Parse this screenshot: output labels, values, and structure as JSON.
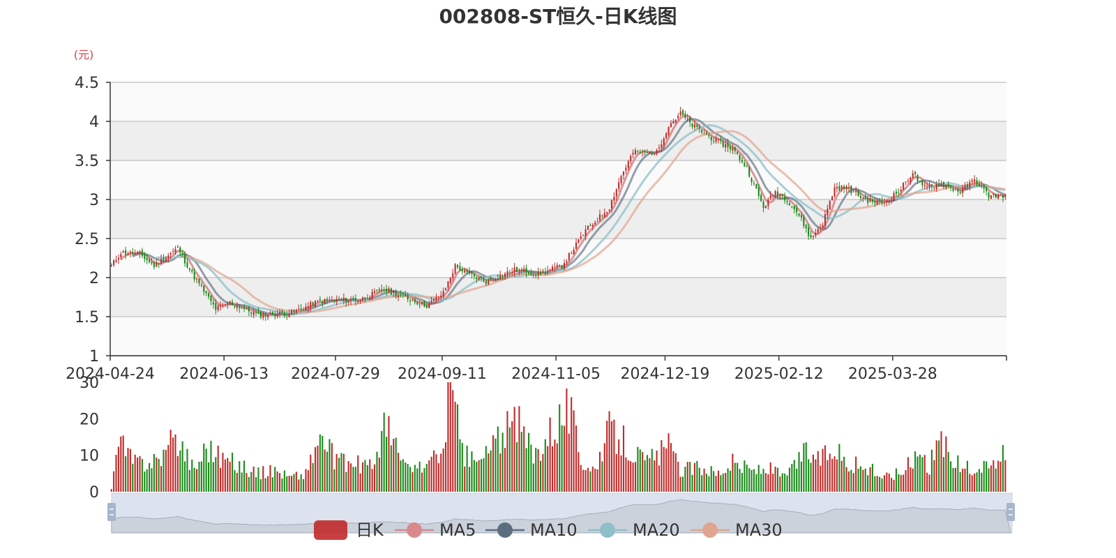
{
  "chart_data": {
    "type": "candlestick",
    "title": "002808-ST恒久-日K线图",
    "price_unit": "(元)",
    "colors": {
      "up": "#c12a2a",
      "down": "#1a8a1a",
      "ma5": "#d9898c",
      "ma10": "#5b6e7f",
      "ma20": "#8fbfc9",
      "ma30": "#e0a590",
      "band": "#eeeeee",
      "zoom_fill": "#dde3ee",
      "zoom_handle": "#a6b6cc",
      "unit": "#e04040"
    },
    "price_axis": {
      "ylim": [
        1,
        4.5
      ],
      "ticks": [
        "1",
        "1.5",
        "2",
        "2.5",
        "3",
        "3.5",
        "4",
        "4.5"
      ]
    },
    "volume_axis": {
      "ylim": [
        0,
        30
      ],
      "ticks": [
        "0",
        "10",
        "20",
        "30"
      ]
    },
    "x_ticks": [
      "2024-04-24",
      "2024-06-13",
      "2024-07-29",
      "2024-09-11",
      "2024-11-05",
      "2024-12-19",
      "2025-02-12",
      "2025-03-28"
    ],
    "legend": [
      {
        "name": "日K",
        "key": "up"
      },
      {
        "name": "MA5",
        "key": "ma5"
      },
      {
        "name": "MA10",
        "key": "ma10"
      },
      {
        "name": "MA20",
        "key": "ma20"
      },
      {
        "name": "MA30",
        "key": "ma30"
      }
    ],
    "close_keypoints": [
      [
        0,
        2.15
      ],
      [
        4,
        2.32
      ],
      [
        12,
        2.3
      ],
      [
        18,
        2.15
      ],
      [
        28,
        2.38
      ],
      [
        34,
        2.05
      ],
      [
        44,
        1.6
      ],
      [
        50,
        1.68
      ],
      [
        62,
        1.52
      ],
      [
        76,
        1.55
      ],
      [
        88,
        1.7
      ],
      [
        105,
        1.72
      ],
      [
        115,
        1.85
      ],
      [
        133,
        1.64
      ],
      [
        140,
        1.8
      ],
      [
        145,
        2.15
      ],
      [
        150,
        2.05
      ],
      [
        158,
        1.95
      ],
      [
        170,
        2.1
      ],
      [
        180,
        2.05
      ],
      [
        190,
        2.15
      ],
      [
        200,
        2.6
      ],
      [
        210,
        2.9
      ],
      [
        215,
        3.3
      ],
      [
        220,
        3.6
      ],
      [
        230,
        3.6
      ],
      [
        235,
        3.95
      ],
      [
        240,
        4.1
      ],
      [
        245,
        3.95
      ],
      [
        255,
        3.75
      ],
      [
        262,
        3.65
      ],
      [
        268,
        3.4
      ],
      [
        275,
        2.9
      ],
      [
        280,
        3.1
      ],
      [
        285,
        3.0
      ],
      [
        290,
        2.8
      ],
      [
        295,
        2.5
      ],
      [
        300,
        2.7
      ],
      [
        305,
        3.15
      ],
      [
        310,
        3.15
      ],
      [
        318,
        3.0
      ],
      [
        325,
        2.95
      ],
      [
        332,
        3.1
      ],
      [
        338,
        3.35
      ],
      [
        342,
        3.15
      ],
      [
        350,
        3.2
      ],
      [
        358,
        3.1
      ],
      [
        364,
        3.25
      ],
      [
        370,
        3.05
      ],
      [
        377,
        3.05
      ]
    ],
    "volume_keypoints": [
      [
        0,
        1
      ],
      [
        3,
        13
      ],
      [
        10,
        8
      ],
      [
        20,
        9
      ],
      [
        28,
        15
      ],
      [
        35,
        6
      ],
      [
        40,
        13
      ],
      [
        45,
        10
      ],
      [
        55,
        7
      ],
      [
        62,
        5
      ],
      [
        70,
        6
      ],
      [
        75,
        4
      ],
      [
        82,
        5
      ],
      [
        88,
        15
      ],
      [
        95,
        8
      ],
      [
        110,
        7
      ],
      [
        115,
        18
      ],
      [
        125,
        6
      ],
      [
        135,
        8
      ],
      [
        140,
        11
      ],
      [
        142,
        29
      ],
      [
        145,
        23
      ],
      [
        148,
        10
      ],
      [
        155,
        8
      ],
      [
        165,
        16
      ],
      [
        172,
        18
      ],
      [
        178,
        10
      ],
      [
        188,
        20
      ],
      [
        193,
        23
      ],
      [
        198,
        9
      ],
      [
        205,
        6
      ],
      [
        210,
        17
      ],
      [
        218,
        13
      ],
      [
        225,
        8
      ],
      [
        235,
        12
      ],
      [
        240,
        6
      ],
      [
        250,
        7
      ],
      [
        255,
        5
      ],
      [
        262,
        8
      ],
      [
        270,
        6
      ],
      [
        278,
        6
      ],
      [
        285,
        4
      ],
      [
        292,
        11
      ],
      [
        300,
        9
      ],
      [
        305,
        13
      ],
      [
        310,
        8
      ],
      [
        320,
        6
      ],
      [
        326,
        4
      ],
      [
        335,
        6
      ],
      [
        340,
        12
      ],
      [
        345,
        7
      ],
      [
        350,
        15
      ],
      [
        355,
        8
      ],
      [
        362,
        6
      ],
      [
        370,
        7
      ],
      [
        377,
        10
      ]
    ]
  }
}
